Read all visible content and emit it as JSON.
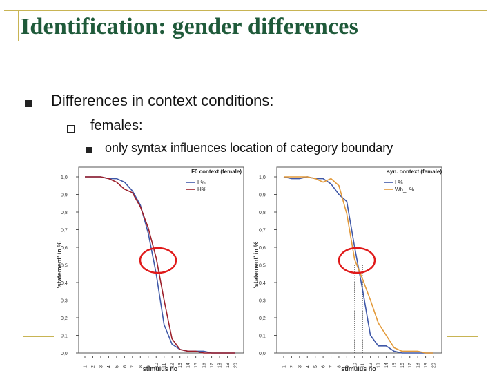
{
  "slide": {
    "title": "Identification: gender differences",
    "bullet1": "Differences in context conditions:",
    "bullet2": "females:",
    "bullet3": "only syntax influences location of category boundary"
  },
  "colors": {
    "title": "#1f5a3a",
    "frame": "#c8b454",
    "blue": "#3f58a8",
    "red": "#9c1f2a",
    "orange": "#e39a3a",
    "highlight_circle": "#e01a1a"
  },
  "chart_data": [
    {
      "type": "line",
      "title": "F0 context (female)",
      "xlabel": "stimulus no",
      "ylabel": "'statement' in %",
      "x": [
        1,
        2,
        3,
        4,
        5,
        6,
        7,
        8,
        9,
        10,
        11,
        12,
        13,
        14,
        15,
        16,
        17,
        18,
        19,
        20
      ],
      "yticks": [
        "0,0",
        "0,1",
        "0,2",
        "0,3",
        "0,4",
        "0,5",
        "0,6",
        "0,7",
        "0,8",
        "0,9",
        "1,0"
      ],
      "ylim": [
        0,
        1
      ],
      "reference_line": 0.5,
      "legend_position": "top-right",
      "series": [
        {
          "name": "L%",
          "color": "#3f58a8",
          "values": [
            1.0,
            1.0,
            1.0,
            0.99,
            0.99,
            0.97,
            0.92,
            0.84,
            0.68,
            0.45,
            0.16,
            0.05,
            0.02,
            0.01,
            0.01,
            0.01,
            0.0,
            0.0,
            0.0,
            0.0
          ]
        },
        {
          "name": "H%",
          "color": "#9c1f2a",
          "values": [
            1.0,
            1.0,
            1.0,
            0.99,
            0.97,
            0.93,
            0.91,
            0.83,
            0.71,
            0.54,
            0.3,
            0.08,
            0.02,
            0.01,
            0.01,
            0.0,
            0.0,
            0.0,
            0.0,
            0.0
          ]
        }
      ]
    },
    {
      "type": "line",
      "title": "syn. context (female)",
      "xlabel": "stimulus no",
      "ylabel": "'statement' in %",
      "x": [
        1,
        2,
        3,
        4,
        5,
        6,
        7,
        8,
        9,
        10,
        11,
        12,
        13,
        14,
        15,
        16,
        17,
        18,
        19,
        20
      ],
      "yticks": [
        "0,0",
        "0,1",
        "0,2",
        "0,3",
        "0,4",
        "0,5",
        "0,6",
        "0,7",
        "0,8",
        "0,9",
        "1,0"
      ],
      "ylim": [
        0,
        1
      ],
      "reference_line": 0.5,
      "vertical_markers": [
        10,
        11
      ],
      "legend_position": "top-right",
      "series": [
        {
          "name": "L%",
          "color": "#3f58a8",
          "values": [
            1.0,
            0.99,
            0.99,
            1.0,
            0.99,
            0.99,
            0.96,
            0.9,
            0.86,
            0.6,
            0.36,
            0.1,
            0.04,
            0.04,
            0.01,
            0.0,
            0.0,
            0.0,
            0.0,
            0.0
          ]
        },
        {
          "name": "Wh_L%",
          "color": "#e39a3a",
          "values": [
            1.0,
            1.0,
            1.0,
            1.0,
            0.99,
            0.97,
            0.99,
            0.95,
            0.79,
            0.53,
            0.42,
            0.3,
            0.17,
            0.1,
            0.03,
            0.01,
            0.01,
            0.01,
            0.0,
            0.0
          ]
        }
      ]
    }
  ]
}
